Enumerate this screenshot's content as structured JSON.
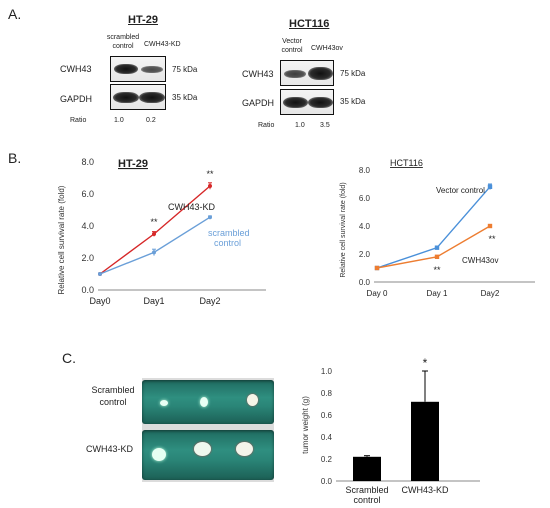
{
  "panels": {
    "a": "A.",
    "b": "B.",
    "c": "C."
  },
  "blot_ht29": {
    "title": "HT-29",
    "lane1_line1": "scrambled",
    "lane1_line2": "control",
    "lane2": "CWH43-KD",
    "row1": "CWH43",
    "row2": "GAPDH",
    "kda1": "75 kDa",
    "kda2": "35 kDa",
    "ratio_label": "Ratio",
    "ratio1": "1.0",
    "ratio2": "0.2"
  },
  "blot_hct116": {
    "title": "HCT116",
    "lane1_line1": "Vector",
    "lane1_line2": "control",
    "lane2": "CWH43ov",
    "row1": "CWH43",
    "row2": "GAPDH",
    "kda1": "75 kDa",
    "kda2": "35 kDa",
    "ratio_label": "Ratio",
    "ratio1": "1.0",
    "ratio2": "3.5"
  },
  "tumor_photo": {
    "row1_line1": "Scrambled",
    "row1_line2": "control",
    "row2": "CWH43-KD"
  },
  "chart_data": [
    {
      "type": "line",
      "title": "HT-29",
      "ylabel": "Relative cell survival rate (fold)",
      "xlabel": "",
      "categories": [
        "Day0",
        "Day1",
        "Day2"
      ],
      "yticks": [
        "0.0",
        "2.0",
        "4.0",
        "6.0",
        "8.0"
      ],
      "ylim": [
        0,
        8
      ],
      "series": [
        {
          "name": "CWH43-KD",
          "color": "#d62728",
          "values": [
            1.0,
            3.5,
            6.5
          ],
          "errors": [
            0.05,
            0.15,
            0.2
          ]
        },
        {
          "name_line1": "scrambled",
          "name_line2": "control",
          "color": "#6a9fd8",
          "values": [
            1.0,
            2.35,
            4.55
          ],
          "errors": [
            0.05,
            0.2,
            0.08
          ]
        }
      ],
      "annotations": [
        "**",
        "**"
      ]
    },
    {
      "type": "line",
      "title": "HCT116",
      "ylabel": "Relative cell survival rate (fold)",
      "xlabel": "",
      "categories": [
        "Day 0",
        "Day 1",
        "Day2"
      ],
      "yticks": [
        "0.0",
        "2.0",
        "4.0",
        "6.0",
        "8.0"
      ],
      "ylim": [
        0,
        8
      ],
      "series": [
        {
          "name": "Vector control",
          "color": "#4a90d9",
          "values": [
            1.0,
            2.45,
            6.8
          ],
          "errors": [
            0.05,
            0.08,
            0.2
          ]
        },
        {
          "name": "CWH43ov",
          "color": "#ed7d31",
          "values": [
            1.0,
            1.8,
            4.0
          ],
          "errors": [
            0.05,
            0.06,
            0.1
          ]
        }
      ],
      "annotations": [
        "**",
        "**"
      ]
    },
    {
      "type": "bar",
      "title": "",
      "ylabel": "tumor weight (g)",
      "xlabel": "",
      "categories_line1": [
        "Scrambled",
        "CWH43-KD"
      ],
      "categories_line2": [
        "control",
        ""
      ],
      "yticks": [
        "0.0",
        "0.2",
        "0.4",
        "0.6",
        "0.8",
        "1.0"
      ],
      "ylim": [
        0,
        1.0
      ],
      "values": [
        0.22,
        0.72
      ],
      "errors": [
        0.01,
        0.28
      ],
      "color": "#000000",
      "annotations": [
        "",
        "*"
      ]
    }
  ]
}
